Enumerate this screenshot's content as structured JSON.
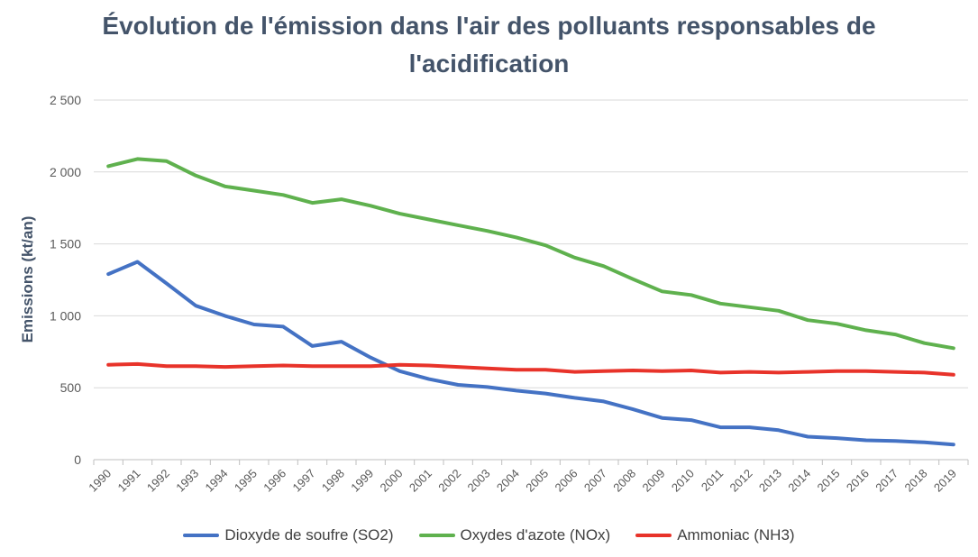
{
  "chart_data": {
    "type": "line",
    "title_line1": "Évolution de l'émission dans l'air des polluants responsables de",
    "title_line2": "l'acidification",
    "xlabel": "",
    "ylabel": "Emissions (kt/an)",
    "ylim": [
      0,
      2500
    ],
    "yticks": [
      0,
      500,
      1000,
      1500,
      2000,
      2500
    ],
    "ytick_labels": [
      "0",
      "500",
      "1 000",
      "1 500",
      "2 000",
      "2 500"
    ],
    "grid": true,
    "legend_position": "bottom",
    "x": [
      "1990",
      "1991",
      "1992",
      "1993",
      "1994",
      "1995",
      "1996",
      "1997",
      "1998",
      "1999",
      "2000",
      "2001",
      "2002",
      "2003",
      "2004",
      "2005",
      "2006",
      "2007",
      "2008",
      "2009",
      "2010",
      "2011",
      "2012",
      "2013",
      "2014",
      "2015",
      "2016",
      "2017",
      "2018",
      "2019"
    ],
    "series": [
      {
        "name": "Dioxyde de soufre (SO2)",
        "color": "#4472C4",
        "values": [
          1290,
          1375,
          1225,
          1070,
          1000,
          940,
          925,
          790,
          820,
          710,
          615,
          560,
          520,
          505,
          480,
          460,
          430,
          405,
          350,
          290,
          275,
          225,
          225,
          205,
          160,
          150,
          135,
          130,
          120,
          105
        ]
      },
      {
        "name": "Oxydes d'azote (NOx)",
        "color": "#5FB14E",
        "values": [
          2040,
          2090,
          2075,
          1975,
          1900,
          1870,
          1840,
          1785,
          1810,
          1765,
          1710,
          1670,
          1630,
          1590,
          1545,
          1490,
          1405,
          1345,
          1255,
          1170,
          1145,
          1085,
          1060,
          1035,
          970,
          945,
          900,
          870,
          810,
          775
        ]
      },
      {
        "name": "Ammoniac (NH3)",
        "color": "#E8332A",
        "values": [
          660,
          665,
          650,
          650,
          645,
          650,
          655,
          650,
          650,
          650,
          660,
          655,
          645,
          635,
          625,
          625,
          610,
          615,
          620,
          615,
          620,
          605,
          610,
          605,
          610,
          615,
          615,
          610,
          605,
          590
        ]
      }
    ]
  }
}
